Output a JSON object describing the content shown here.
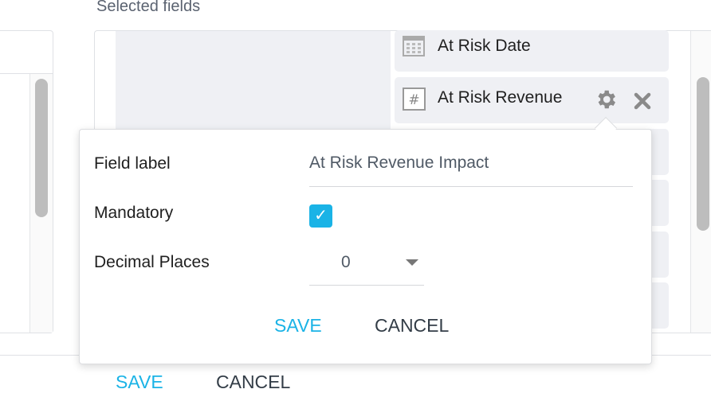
{
  "header": {
    "title": "Selected fields"
  },
  "selected_fields": [
    {
      "label": "At Risk Date",
      "icon": "calendar-icon"
    },
    {
      "label": "At Risk Revenue",
      "icon": "number-icon"
    }
  ],
  "popover": {
    "field_label": "Field label",
    "field_value": "At Risk Revenue Impact",
    "mandatory_label": "Mandatory",
    "mandatory_checked": true,
    "decimal_label": "Decimal Places",
    "decimal_value": "0",
    "save": "SAVE",
    "cancel": "CANCEL"
  },
  "footer": {
    "save": "SAVE",
    "cancel": "CANCEL"
  },
  "colors": {
    "accent": "#1ab3e6",
    "chip_bg": "#eff0f4"
  }
}
